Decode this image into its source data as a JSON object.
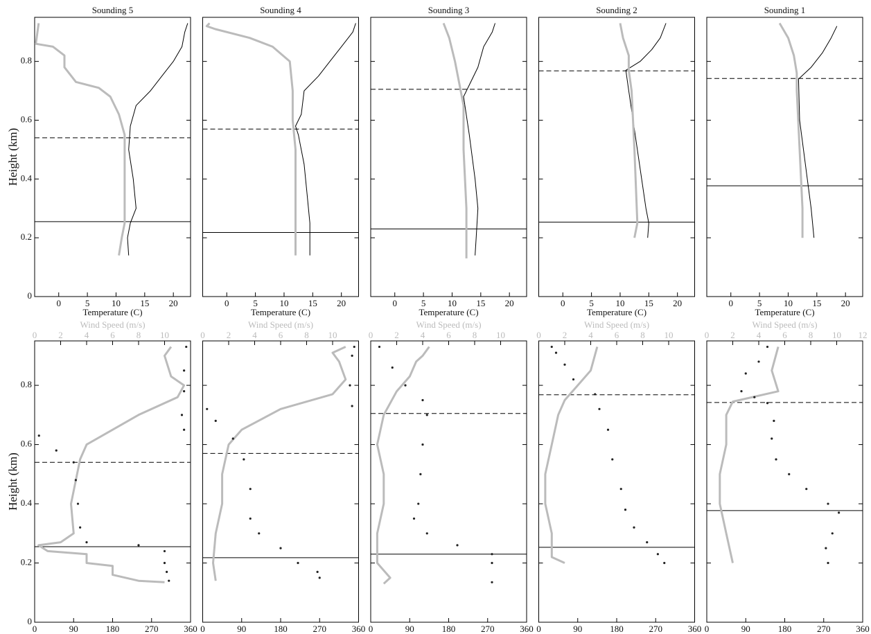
{
  "chart_data": [
    {
      "type": "line",
      "title": "Sounding 5",
      "xlabel": "Temperature (C)",
      "ylabel": "Height (km)",
      "xlim": [
        -4.2,
        23
      ],
      "xticks": [
        0,
        5,
        10,
        15,
        20
      ],
      "ylim": [
        0,
        0.95
      ],
      "yticks": [
        0,
        0.2,
        0.4,
        0.6,
        0.8
      ],
      "show_ytick_labels": true,
      "series": [
        {
          "color": "#000000",
          "x": [
            12.2,
            12,
            12.5,
            13.5,
            13,
            12.2,
            12.5,
            13.5,
            16,
            18,
            20,
            21.5,
            22,
            22.5
          ],
          "values": [
            0.14,
            0.2,
            0.25,
            0.3,
            0.4,
            0.5,
            0.58,
            0.65,
            0.7,
            0.75,
            0.8,
            0.85,
            0.9,
            0.93
          ]
        },
        {
          "color": "#bbbbbb",
          "x": [
            10.5,
            11,
            11.5,
            11.5,
            11.5,
            10.5,
            9,
            7,
            3,
            1,
            1,
            -1,
            -4,
            -3.5
          ],
          "values": [
            0.14,
            0.2,
            0.25,
            0.4,
            0.55,
            0.62,
            0.68,
            0.71,
            0.73,
            0.78,
            0.82,
            0.85,
            0.86,
            0.93
          ]
        }
      ],
      "hlines": [
        {
          "value": 0.255,
          "style": "solid"
        },
        {
          "value": 0.54,
          "style": "dashed"
        }
      ]
    },
    {
      "type": "line",
      "title": "Sounding 4",
      "xlabel": "Temperature (C)",
      "xlim": [
        -4.2,
        23
      ],
      "xticks": [
        0,
        5,
        10,
        15,
        20
      ],
      "ylim": [
        0,
        0.95
      ],
      "yticks": [
        0,
        0.2,
        0.4,
        0.6,
        0.8
      ],
      "show_ytick_labels": false,
      "series": [
        {
          "color": "#000000",
          "x": [
            14.5,
            14.5,
            14,
            13.5,
            12.5,
            12,
            13,
            13.5,
            16,
            18,
            20,
            22,
            22.5
          ],
          "values": [
            0.14,
            0.25,
            0.35,
            0.45,
            0.55,
            0.58,
            0.62,
            0.7,
            0.75,
            0.8,
            0.85,
            0.9,
            0.93
          ]
        },
        {
          "color": "#bbbbbb",
          "x": [
            12,
            12,
            12,
            11.5,
            11.5,
            11,
            8,
            4,
            -2,
            -3.5,
            -3
          ],
          "values": [
            0.14,
            0.3,
            0.5,
            0.6,
            0.7,
            0.8,
            0.85,
            0.88,
            0.91,
            0.92,
            0.93
          ]
        }
      ],
      "hlines": [
        {
          "value": 0.218,
          "style": "solid"
        },
        {
          "value": 0.57,
          "style": "dashed"
        }
      ]
    },
    {
      "type": "line",
      "title": "Sounding 3",
      "xlabel": "Temperature (C)",
      "xlim": [
        -4.2,
        23
      ],
      "xticks": [
        0,
        5,
        10,
        15,
        20
      ],
      "ylim": [
        0,
        0.95
      ],
      "yticks": [
        0,
        0.2,
        0.4,
        0.6,
        0.8
      ],
      "show_ytick_labels": false,
      "series": [
        {
          "color": "#000000",
          "x": [
            14,
            14.2,
            14.5,
            14,
            13,
            12,
            13,
            14.5,
            15.5,
            17,
            17.5
          ],
          "values": [
            0.14,
            0.2,
            0.3,
            0.4,
            0.55,
            0.68,
            0.72,
            0.78,
            0.85,
            0.9,
            0.93
          ]
        },
        {
          "color": "#bbbbbb",
          "x": [
            12.5,
            12.5,
            12,
            12,
            11.5,
            10.5,
            9.5,
            8.5
          ],
          "values": [
            0.13,
            0.3,
            0.5,
            0.65,
            0.7,
            0.8,
            0.88,
            0.93
          ]
        }
      ],
      "hlines": [
        {
          "value": 0.23,
          "style": "solid"
        },
        {
          "value": 0.705,
          "style": "dashed"
        }
      ]
    },
    {
      "type": "line",
      "title": "Sounding 2",
      "xlabel": "Temperature (C)",
      "xlim": [
        -4.2,
        23
      ],
      "xticks": [
        0,
        5,
        10,
        15,
        20
      ],
      "ylim": [
        0,
        0.95
      ],
      "yticks": [
        0,
        0.2,
        0.4,
        0.6,
        0.8
      ],
      "show_ytick_labels": false,
      "series": [
        {
          "color": "#000000",
          "x": [
            14.8,
            15,
            14.5,
            13,
            11.5,
            11,
            13.5,
            15.5,
            17,
            18
          ],
          "values": [
            0.2,
            0.25,
            0.3,
            0.5,
            0.7,
            0.77,
            0.8,
            0.84,
            0.88,
            0.93
          ]
        },
        {
          "color": "#bbbbbb",
          "x": [
            12.5,
            13,
            12.5,
            12,
            11.5,
            11.5,
            10.5,
            10
          ],
          "values": [
            0.2,
            0.25,
            0.5,
            0.7,
            0.77,
            0.82,
            0.88,
            0.93
          ]
        }
      ],
      "hlines": [
        {
          "value": 0.253,
          "style": "solid"
        },
        {
          "value": 0.768,
          "style": "dashed"
        }
      ]
    },
    {
      "type": "line",
      "title": "Sounding 1",
      "xlabel": "Temperature (C)",
      "xlim": [
        -4.2,
        23
      ],
      "xticks": [
        0,
        5,
        10,
        15,
        20
      ],
      "ylim": [
        0,
        0.95
      ],
      "yticks": [
        0,
        0.2,
        0.4,
        0.6,
        0.8
      ],
      "show_ytick_labels": false,
      "series": [
        {
          "color": "#000000",
          "x": [
            14.5,
            14,
            13,
            12,
            11.8,
            14,
            16,
            17.5,
            18.5
          ],
          "values": [
            0.2,
            0.3,
            0.45,
            0.6,
            0.74,
            0.78,
            0.83,
            0.88,
            0.92
          ]
        },
        {
          "color": "#bbbbbb",
          "x": [
            12.5,
            12.5,
            12,
            11.5,
            11.5,
            11,
            10,
            8.5
          ],
          "values": [
            0.2,
            0.3,
            0.5,
            0.7,
            0.76,
            0.82,
            0.88,
            0.93
          ]
        }
      ],
      "hlines": [
        {
          "value": 0.377,
          "style": "solid"
        },
        {
          "value": 0.742,
          "style": "dashed"
        }
      ]
    },
    {
      "type": "scatter",
      "x2label": "Wind Speed (m/s)",
      "ylabel": "Height (km)",
      "xlim": [
        0,
        360
      ],
      "xticks": [
        0,
        90,
        180,
        270,
        360
      ],
      "x2lim": [
        0,
        12
      ],
      "x2ticks": [
        0,
        2,
        4,
        6,
        8,
        10
      ],
      "ylim": [
        0,
        0.95
      ],
      "yticks": [
        0,
        0.2,
        0.4,
        0.6,
        0.8
      ],
      "show_ytick_labels": true,
      "series": [
        {
          "color": "#bbbbbb",
          "axis": "x2",
          "style": "line",
          "x": [
            10,
            8,
            6,
            6,
            4,
            4,
            1,
            0.3,
            2,
            3,
            2.8,
            3.5,
            4,
            8,
            11,
            11.5,
            10.5,
            10,
            10.5
          ],
          "values": [
            0.135,
            0.14,
            0.16,
            0.19,
            0.2,
            0.23,
            0.24,
            0.26,
            0.27,
            0.3,
            0.4,
            0.55,
            0.6,
            0.7,
            0.76,
            0.8,
            0.83,
            0.9,
            0.93
          ]
        },
        {
          "color": "#222222",
          "style": "dots",
          "x": [
            310,
            305,
            300,
            300,
            240,
            120,
            105,
            100,
            95,
            90,
            50,
            10,
            345,
            340,
            345,
            345,
            350
          ],
          "values": [
            0.14,
            0.17,
            0.2,
            0.24,
            0.26,
            0.27,
            0.32,
            0.4,
            0.48,
            0.54,
            0.58,
            0.63,
            0.65,
            0.7,
            0.78,
            0.85,
            0.93
          ]
        }
      ],
      "hlines": [
        {
          "value": 0.255,
          "style": "solid"
        },
        {
          "value": 0.54,
          "style": "dashed"
        }
      ]
    },
    {
      "type": "scatter",
      "x2label": "Wind Speed (m/s)",
      "xlim": [
        0,
        360
      ],
      "xticks": [
        0,
        90,
        180,
        270,
        360
      ],
      "x2lim": [
        0,
        12
      ],
      "x2ticks": [
        0,
        2,
        4,
        6,
        8,
        10
      ],
      "ylim": [
        0,
        0.95
      ],
      "yticks": [
        0,
        0.2,
        0.4,
        0.6,
        0.8
      ],
      "show_ytick_labels": false,
      "series": [
        {
          "color": "#bbbbbb",
          "axis": "x2",
          "style": "line",
          "x": [
            1,
            0.8,
            1,
            1.5,
            1.5,
            2,
            3,
            6,
            10,
            11,
            10.5,
            10,
            11
          ],
          "values": [
            0.14,
            0.2,
            0.3,
            0.4,
            0.5,
            0.6,
            0.65,
            0.72,
            0.77,
            0.82,
            0.88,
            0.91,
            0.93
          ]
        },
        {
          "color": "#222222",
          "style": "dots",
          "x": [
            270,
            265,
            220,
            180,
            130,
            110,
            110,
            95,
            70,
            30,
            10,
            345,
            340,
            345,
            350
          ],
          "values": [
            0.15,
            0.17,
            0.2,
            0.25,
            0.3,
            0.35,
            0.45,
            0.55,
            0.62,
            0.68,
            0.72,
            0.73,
            0.8,
            0.9,
            0.93
          ]
        }
      ],
      "hlines": [
        {
          "value": 0.218,
          "style": "solid"
        },
        {
          "value": 0.57,
          "style": "dashed"
        }
      ]
    },
    {
      "type": "scatter",
      "x2label": "Wind Speed (m/s)",
      "xlim": [
        0,
        360
      ],
      "xticks": [
        0,
        90,
        180,
        270,
        360
      ],
      "x2lim": [
        0,
        12
      ],
      "x2ticks": [
        0,
        2,
        4,
        6,
        8,
        10
      ],
      "ylim": [
        0,
        0.95
      ],
      "yticks": [
        0,
        0.2,
        0.4,
        0.6,
        0.8
      ],
      "show_ytick_labels": false,
      "series": [
        {
          "color": "#bbbbbb",
          "axis": "x2",
          "style": "line",
          "x": [
            1,
            1.5,
            0.5,
            0.5,
            1,
            1,
            0.5,
            1,
            2,
            3,
            3.5,
            4,
            4.5
          ],
          "values": [
            0.13,
            0.15,
            0.2,
            0.3,
            0.4,
            0.5,
            0.6,
            0.7,
            0.78,
            0.83,
            0.88,
            0.9,
            0.93
          ]
        },
        {
          "color": "#222222",
          "style": "dots",
          "x": [
            280,
            280,
            280,
            200,
            130,
            100,
            110,
            115,
            120,
            130,
            120,
            80,
            50,
            20
          ],
          "values": [
            0.135,
            0.2,
            0.23,
            0.26,
            0.3,
            0.35,
            0.4,
            0.5,
            0.6,
            0.7,
            0.75,
            0.8,
            0.86,
            0.93
          ]
        }
      ],
      "hlines": [
        {
          "value": 0.23,
          "style": "solid"
        },
        {
          "value": 0.705,
          "style": "dashed"
        }
      ]
    },
    {
      "type": "scatter",
      "x2label": "Wind Speed (m/s)",
      "xlim": [
        0,
        360
      ],
      "xticks": [
        0,
        90,
        180,
        270,
        360
      ],
      "x2lim": [
        0,
        12
      ],
      "x2ticks": [
        0,
        2,
        4,
        6,
        8,
        10
      ],
      "ylim": [
        0,
        0.95
      ],
      "yticks": [
        0,
        0.2,
        0.4,
        0.6,
        0.8
      ],
      "show_ytick_labels": false,
      "series": [
        {
          "color": "#bbbbbb",
          "axis": "x2",
          "style": "line",
          "x": [
            2,
            1,
            1,
            0.5,
            0.5,
            1,
            1.5,
            2,
            3,
            4,
            4.5
          ],
          "values": [
            0.2,
            0.22,
            0.3,
            0.4,
            0.5,
            0.6,
            0.7,
            0.75,
            0.8,
            0.85,
            0.93
          ]
        },
        {
          "color": "#222222",
          "style": "dots",
          "x": [
            290,
            275,
            250,
            220,
            200,
            190,
            170,
            160,
            140,
            130,
            80,
            60,
            40,
            30
          ],
          "values": [
            0.2,
            0.23,
            0.27,
            0.32,
            0.38,
            0.45,
            0.55,
            0.65,
            0.72,
            0.77,
            0.82,
            0.87,
            0.91,
            0.93
          ]
        }
      ],
      "hlines": [
        {
          "value": 0.253,
          "style": "solid"
        },
        {
          "value": 0.768,
          "style": "dashed"
        }
      ]
    },
    {
      "type": "scatter",
      "x2label": "Wind Speed (m/s)",
      "xlim": [
        0,
        360
      ],
      "xticks": [
        0,
        90,
        180,
        270,
        360
      ],
      "x2lim": [
        0,
        12
      ],
      "x2ticks": [
        0,
        2,
        4,
        6,
        8,
        10,
        12
      ],
      "ylim": [
        0,
        0.95
      ],
      "yticks": [
        0,
        0.2,
        0.4,
        0.6,
        0.8
      ],
      "show_ytick_labels": false,
      "series": [
        {
          "color": "#bbbbbb",
          "axis": "x2",
          "style": "line",
          "x": [
            2,
            1.5,
            1,
            1,
            1.5,
            1.5,
            2,
            5.5,
            5,
            5.5
          ],
          "values": [
            0.2,
            0.3,
            0.4,
            0.5,
            0.6,
            0.7,
            0.745,
            0.78,
            0.85,
            0.93
          ]
        },
        {
          "color": "#222222",
          "style": "dots",
          "x": [
            280,
            275,
            290,
            305,
            280,
            230,
            190,
            160,
            150,
            155,
            140,
            110,
            80,
            90,
            120,
            140
          ],
          "values": [
            0.2,
            0.25,
            0.3,
            0.37,
            0.4,
            0.45,
            0.5,
            0.55,
            0.62,
            0.68,
            0.74,
            0.76,
            0.78,
            0.84,
            0.88,
            0.93
          ]
        }
      ],
      "hlines": [
        {
          "value": 0.377,
          "style": "solid"
        },
        {
          "value": 0.742,
          "style": "dashed"
        }
      ]
    }
  ]
}
